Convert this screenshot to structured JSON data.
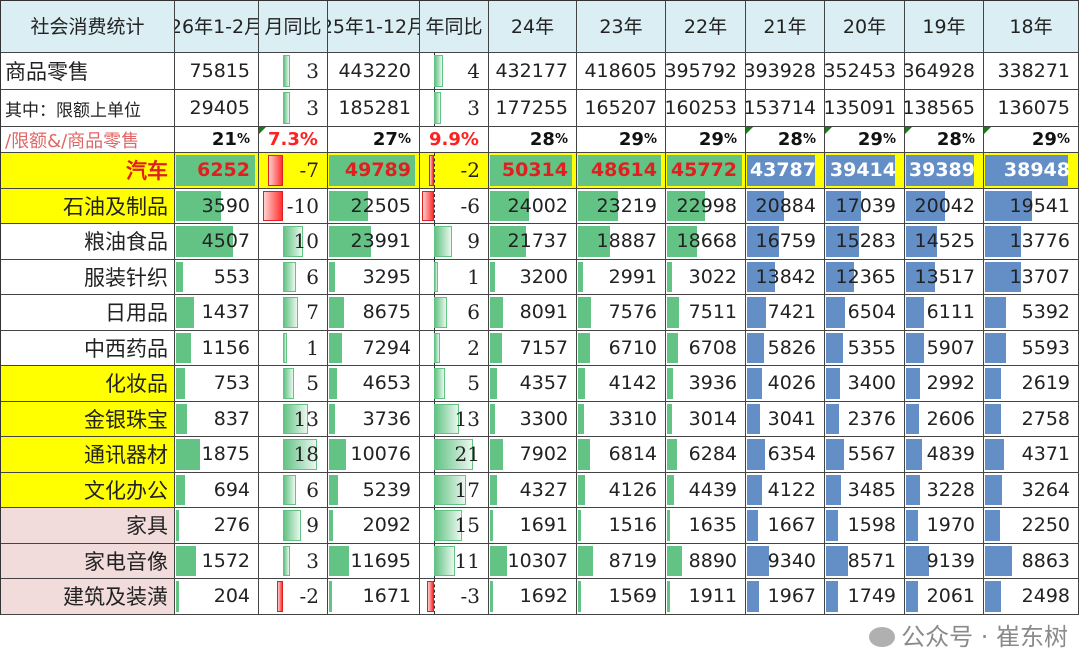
{
  "header": {
    "label": "社会消费统计",
    "columns": [
      "26年1-2月",
      "月同比",
      "25年1-12月",
      "年同比",
      "24年",
      "23年",
      "22年",
      "21年",
      "20年",
      "19年",
      "18年"
    ]
  },
  "totals": [
    {
      "label": "商品零售",
      "values": [
        75815,
        3,
        443220,
        4,
        432177,
        418605,
        395792,
        393928,
        352453,
        364928,
        338271
      ]
    },
    {
      "label": "其中：限额上单位",
      "values": [
        29405,
        3,
        185281,
        3,
        177255,
        165207,
        160253,
        153714,
        135091,
        138565,
        136075
      ]
    }
  ],
  "ratio_row": {
    "label": "/限额&/商品零售",
    "values": [
      "21",
      "7.3%",
      "27",
      "9.9%",
      "28",
      "29",
      "29",
      "28",
      "29",
      "28",
      "29"
    ],
    "pct_sign": "%"
  },
  "categories": [
    {
      "label": "汽车",
      "highlight": "yellow",
      "values": [
        6252,
        -7,
        49789,
        -2,
        50314,
        48614,
        45772,
        43787,
        39414,
        39389,
        38948
      ]
    },
    {
      "label": "石油及制品",
      "highlight": "yellow",
      "values": [
        3590,
        -10,
        22505,
        -6,
        24002,
        23219,
        22998,
        20884,
        17039,
        20042,
        19541
      ]
    },
    {
      "label": "粮油食品",
      "highlight": "none",
      "values": [
        4507,
        10,
        23991,
        9,
        21737,
        18887,
        18668,
        16759,
        15283,
        14525,
        13776
      ]
    },
    {
      "label": "服装针织",
      "highlight": "none",
      "values": [
        553,
        6,
        3295,
        1,
        3200,
        2991,
        3022,
        13842,
        12365,
        13517,
        13707
      ]
    },
    {
      "label": "日用品",
      "highlight": "none",
      "values": [
        1437,
        7,
        8675,
        6,
        8091,
        7576,
        7511,
        7421,
        6504,
        6111,
        5392
      ]
    },
    {
      "label": "中西药品",
      "highlight": "none",
      "values": [
        1156,
        1,
        7294,
        2,
        7157,
        6710,
        6708,
        5826,
        5355,
        5907,
        5593
      ]
    },
    {
      "label": "化妆品",
      "highlight": "yellow",
      "values": [
        753,
        5,
        4653,
        5,
        4357,
        4142,
        3936,
        4026,
        3400,
        2992,
        2619
      ]
    },
    {
      "label": "金银珠宝",
      "highlight": "yellow",
      "values": [
        837,
        13,
        3736,
        13,
        3300,
        3310,
        3014,
        3041,
        2376,
        2606,
        2758
      ]
    },
    {
      "label": "通讯器材",
      "highlight": "yellow",
      "values": [
        1875,
        18,
        10076,
        21,
        7902,
        6814,
        6284,
        6354,
        5567,
        4839,
        4371
      ]
    },
    {
      "label": "文化办公",
      "highlight": "yellow",
      "values": [
        694,
        6,
        5239,
        17,
        4327,
        4126,
        4439,
        4122,
        3485,
        3228,
        3264
      ]
    },
    {
      "label": "家具",
      "highlight": "pink",
      "values": [
        276,
        9,
        2092,
        15,
        1691,
        1516,
        1635,
        1667,
        1598,
        1970,
        2250
      ]
    },
    {
      "label": "家电音像",
      "highlight": "pink",
      "values": [
        1572,
        3,
        11695,
        11,
        10307,
        8719,
        8890,
        9340,
        8571,
        9139,
        8863
      ]
    },
    {
      "label": "建筑及装潢",
      "highlight": "pink",
      "values": [
        204,
        -2,
        1671,
        -3,
        1692,
        1569,
        1911,
        1967,
        1749,
        2061,
        2498
      ]
    }
  ],
  "colors": {
    "header_bg": "#daeef3",
    "highlight_yellow": "#ffff00",
    "highlight_pink": "#f2dcdb",
    "bar_green": "#63c384",
    "bar_blue": "#638ec6",
    "bar_red": "#ff3030",
    "text_red": "#e02020"
  },
  "watermark": "公众号 · 崔东树"
}
